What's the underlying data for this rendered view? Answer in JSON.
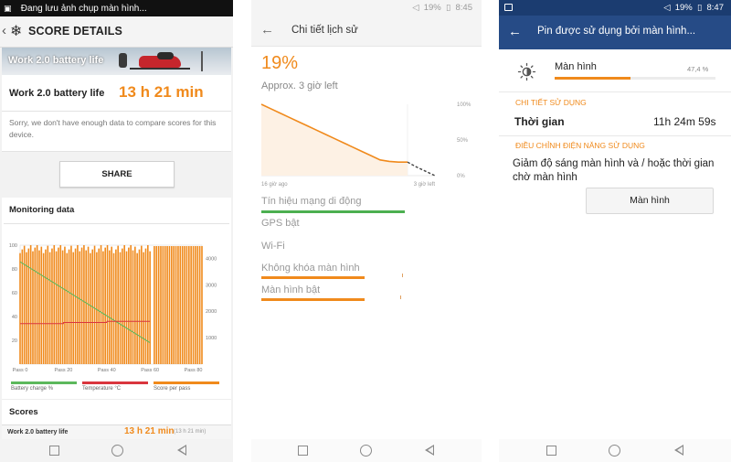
{
  "screen1": {
    "status_text": "Đang lưu ảnh chụp màn hình...",
    "header_title": "SCORE DETAILS",
    "banner_title": "Work 2.0 battery life",
    "result_label": "Work 2.0 battery life",
    "result_value": "13 h 21 min",
    "sorry_text": "Sorry, we don't have enough data to compare scores for this device.",
    "share_label": "SHARE",
    "monitoring_title": "Monitoring data",
    "chart_data": {
      "type": "line",
      "title": "",
      "left_axis": {
        "ticks": [
          "100",
          "80",
          "60",
          "40",
          "20"
        ],
        "ylim": [
          0,
          100
        ]
      },
      "right_axis": {
        "ticks": [
          "4000",
          "3000",
          "2000",
          "1000"
        ],
        "ylim": [
          0,
          4500
        ]
      },
      "x_ticks": [
        "Pass 0",
        "Pass 20",
        "Pass 40",
        "Pass 60",
        "Pass 80"
      ],
      "series": [
        {
          "name": "Battery charge %",
          "color": "#5cb85c",
          "x": [
            0,
            60
          ],
          "values": [
            86,
            18
          ]
        },
        {
          "name": "Temperature °C",
          "color": "#d9363e",
          "x": [
            0,
            20,
            20.1,
            40,
            40.1,
            60
          ],
          "values": [
            34,
            34,
            35,
            35,
            36,
            36
          ]
        },
        {
          "name": "Score per pass",
          "color": "#f08a1c",
          "approx_range": [
            4200,
            4550
          ]
        }
      ]
    },
    "scores_title": "Scores",
    "score_row": {
      "label": "Work 2.0 battery life",
      "value": "13 h 21 min",
      "sub": "(13 h 21 min)"
    }
  },
  "screen2": {
    "status_battery": "19%",
    "status_time": "8:45",
    "title": "Chi tiết lịch sử",
    "percent": "19%",
    "approx": "Approx. 3 giờ left",
    "chart_data": {
      "type": "line",
      "title": "",
      "y_ticks": [
        "100%",
        "50%",
        "0%"
      ],
      "x_ticks": [
        "16 giờ ago",
        "3 giờ left"
      ],
      "series": [
        {
          "name": "",
          "color": "#f08a1c",
          "x": [
            0,
            1,
            2,
            3,
            4,
            5,
            6,
            7,
            8,
            9,
            10,
            11,
            12,
            13,
            14,
            15,
            16
          ],
          "values": [
            100,
            94,
            88,
            82,
            76,
            70,
            64,
            58,
            52,
            46,
            40,
            34,
            28,
            22,
            20,
            19,
            19
          ]
        },
        {
          "name": "",
          "color": "#444444",
          "dashed": true,
          "x": [
            16,
            17,
            18,
            19
          ],
          "values": [
            19,
            12,
            6,
            0
          ]
        }
      ]
    },
    "usage": [
      {
        "label": "Tín hiệu mạng di động",
        "fill": 1.0,
        "color": "#4caf50"
      },
      {
        "label": "GPS bật",
        "fill": 0,
        "color": "#f08a1c"
      },
      {
        "label": "Wi-Fi",
        "fill": 0,
        "color": "#f08a1c"
      },
      {
        "label": "Không khóa màn hình",
        "fill": 0.72,
        "color": "#f08a1c"
      },
      {
        "label": "Màn hình bật",
        "fill": 0.72,
        "color": "#f08a1c"
      }
    ]
  },
  "screen3": {
    "status_battery": "19%",
    "status_time": "8:47",
    "title": "Pin được sử dụng bởi màn hình...",
    "item_label": "Màn hình",
    "item_percent": "47,4 %",
    "item_fill": 0.474,
    "section_detail": "CHI TIẾT SỬ DỤNG",
    "time_label": "Thời gian",
    "time_value": "11h 24m 59s",
    "section_adjust": "ĐIỀU CHỈNH ĐIỆN NĂNG SỬ DỤNG",
    "adjust_text": "Giảm độ sáng màn hình và / hoặc thời gian chờ màn hình",
    "button_label": "Màn hình"
  },
  "colors": {
    "accent": "#f08a1c",
    "header_blue": "#264b86",
    "status_blue": "#1b3c70",
    "green": "#4caf50",
    "red": "#d9363e"
  }
}
